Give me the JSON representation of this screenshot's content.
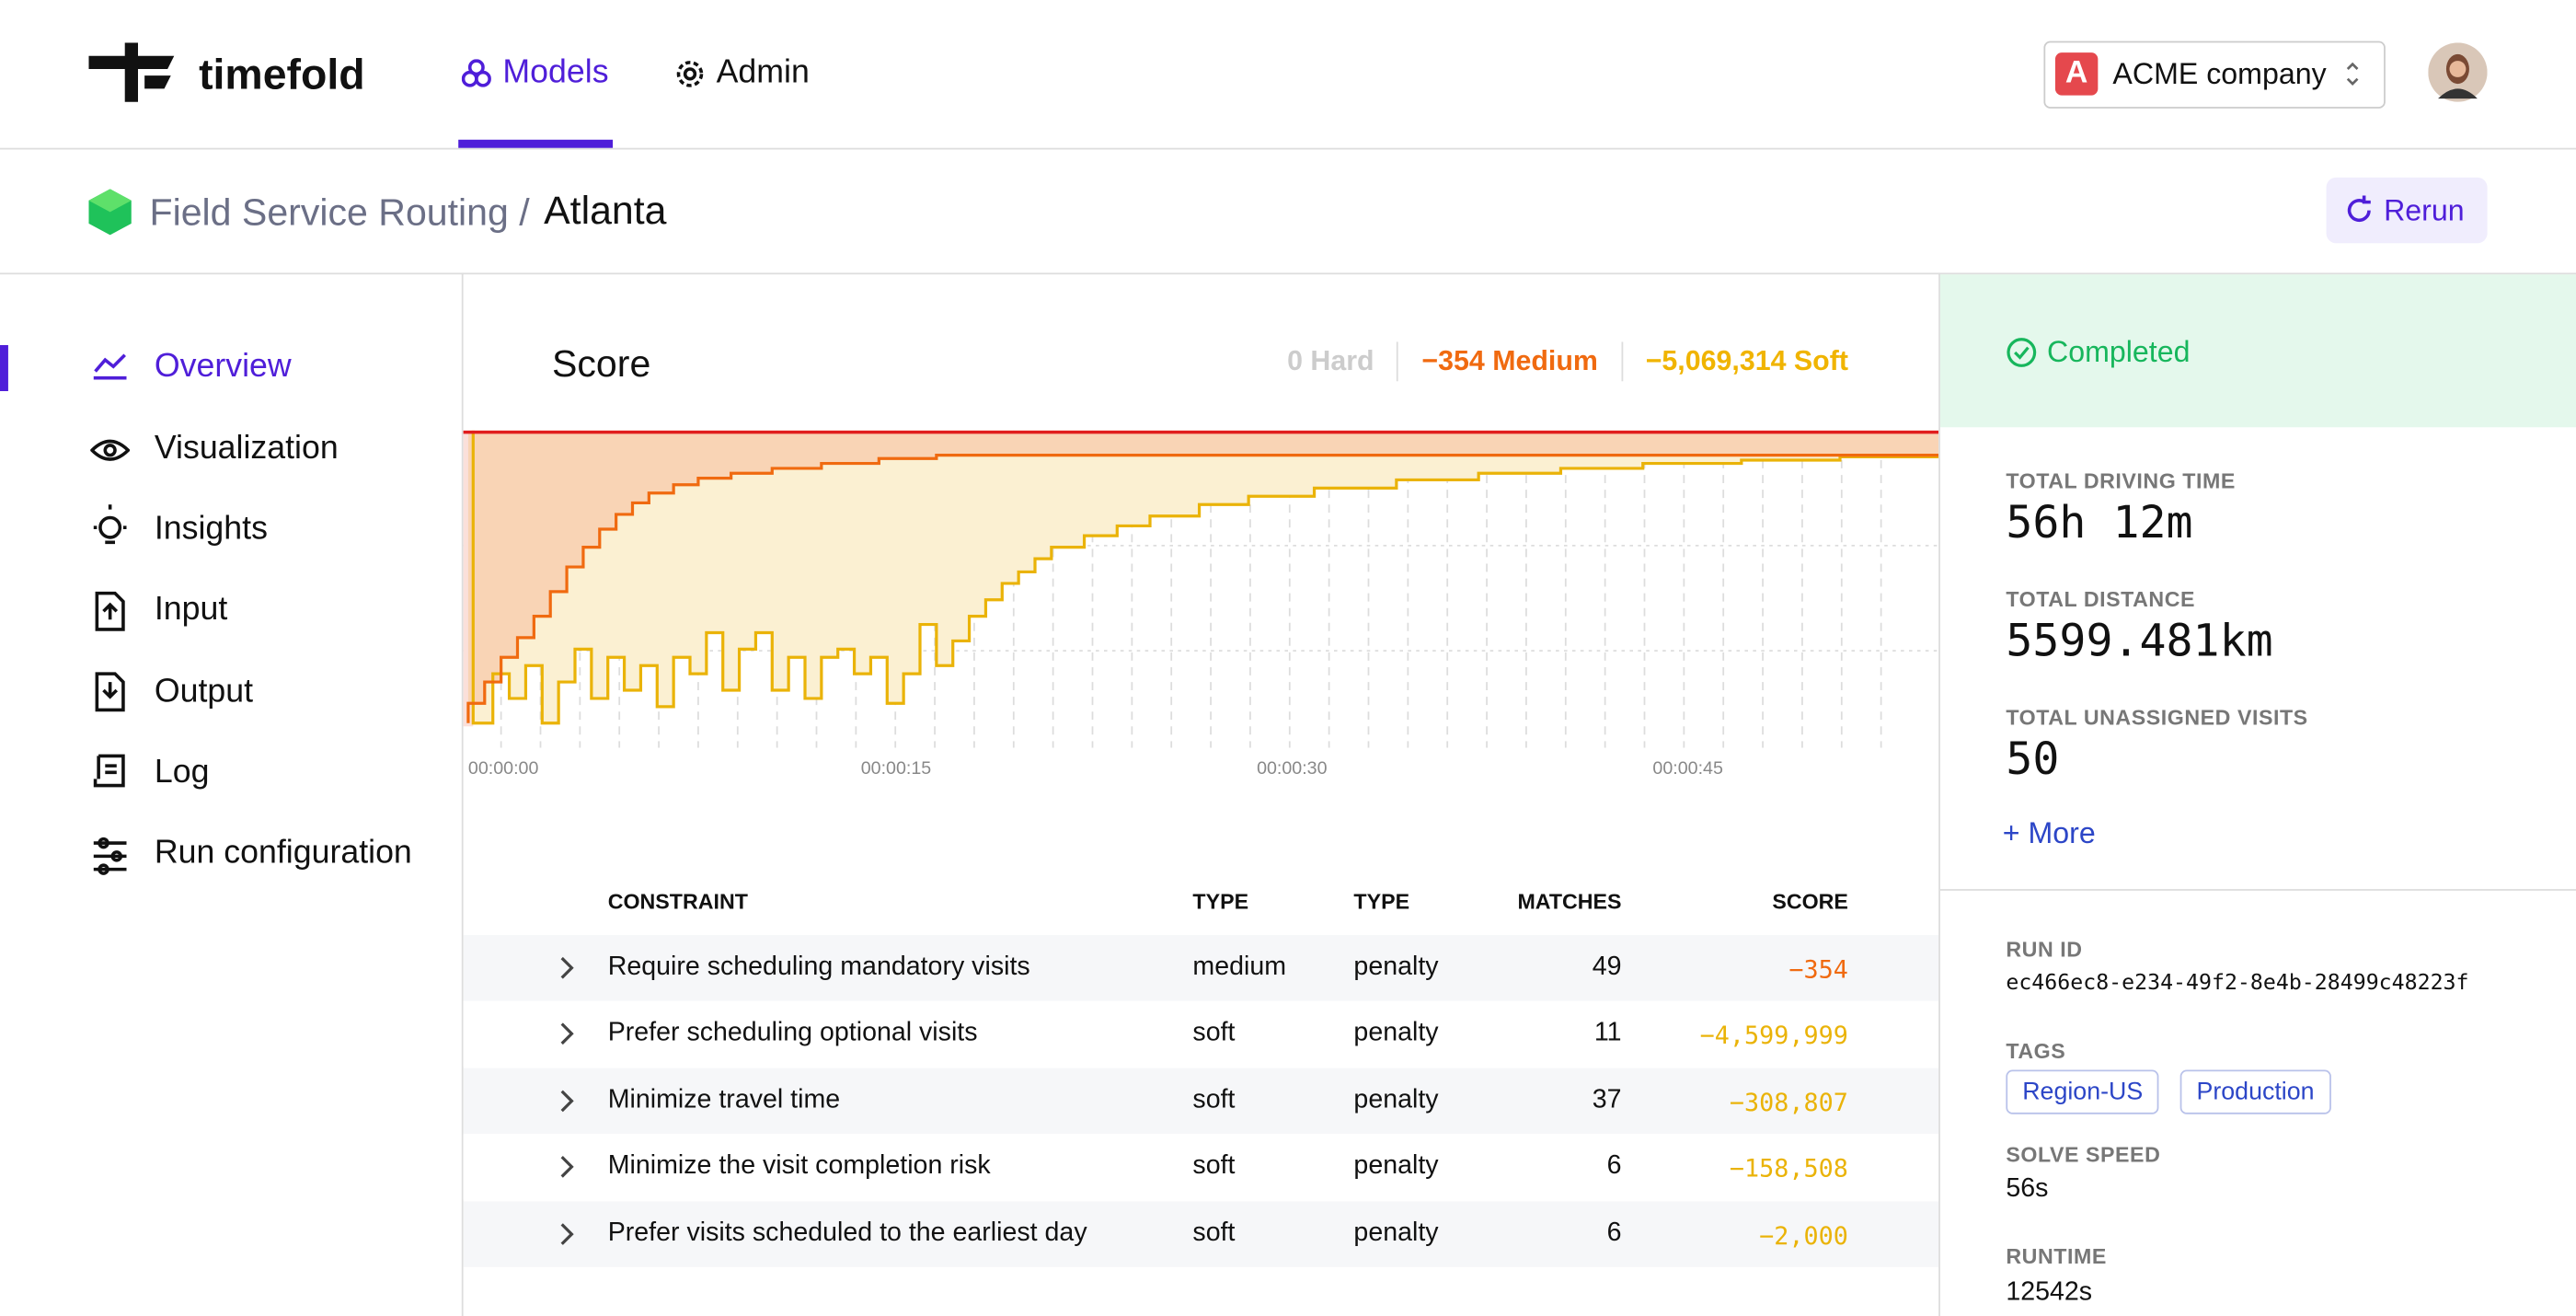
{
  "nav": {
    "brand": "timefold",
    "tabs": [
      "Models",
      "Admin"
    ],
    "company_initial": "A",
    "company": "ACME company"
  },
  "breadcrumb": {
    "parent": "Field Service Routing /",
    "current": "Atlanta",
    "action": "Rerun"
  },
  "sidebar": [
    "Overview",
    "Visualization",
    "Insights",
    "Input",
    "Output",
    "Log",
    "Run configuration"
  ],
  "score": {
    "title": "Score",
    "hard": "0 Hard",
    "medium": "−354 Medium",
    "soft": "−5,069,314 Soft",
    "time_labels": [
      "00:00:00",
      "00:00:15",
      "00:00:30",
      "00:00:45"
    ]
  },
  "table": {
    "headers": [
      "CONSTRAINT",
      "TYPE",
      "TYPE",
      "MATCHES",
      "SCORE"
    ],
    "rows": [
      [
        "Require scheduling mandatory visits",
        "medium",
        "penalty",
        "49",
        "−354"
      ],
      [
        "Prefer scheduling optional visits",
        "soft",
        "penalty",
        "11",
        "−4,599,999"
      ],
      [
        "Minimize travel time",
        "soft",
        "penalty",
        "37",
        "−308,807"
      ],
      [
        "Minimize the visit completion risk",
        "soft",
        "penalty",
        "6",
        "−158,508"
      ],
      [
        "Prefer visits scheduled to the earliest day",
        "soft",
        "penalty",
        "6",
        "−2,000"
      ]
    ]
  },
  "status": "Completed",
  "stats": [
    {
      "label": "TOTAL DRIVING TIME",
      "value": "56h 12m"
    },
    {
      "label": "TOTAL DISTANCE",
      "value": "5599.481km"
    },
    {
      "label": "TOTAL UNASSIGNED VISITS",
      "value": "50"
    }
  ],
  "more": "+ More",
  "run_id": {
    "label": "RUN ID",
    "value": "ec466ec8-e234-49f2-8e4b-28499c48223f"
  },
  "tags": {
    "label": "TAGS",
    "items": [
      "Region-US",
      "Production"
    ]
  },
  "solve_speed": {
    "label": "SOLVE SPEED",
    "value": "56s"
  },
  "runtime": {
    "label": "RUNTIME",
    "value": "12542s"
  }
}
